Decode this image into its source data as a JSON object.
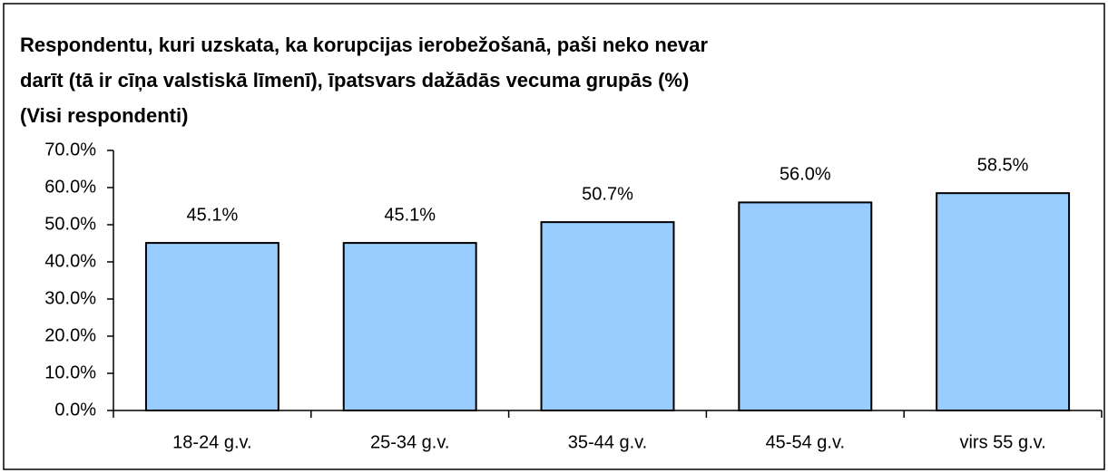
{
  "chart_data": {
    "type": "bar",
    "title": [
      "Respondentu, kuri uzskata, ka korupcijas ierobežošanā, paši neko nevar",
      "darīt (tā ir cīņa valstiskā līmenī), īpatsvars dažādās vecuma grupās (%)",
      "(Visi respondenti)"
    ],
    "categories": [
      "18-24 g.v.",
      "25-34 g.v.",
      "35-44 g.v.",
      "45-54 g.v.",
      "virs 55 g.v."
    ],
    "values": [
      45.1,
      45.1,
      50.7,
      56.0,
      58.5
    ],
    "value_labels": [
      "45.1%",
      "45.1%",
      "50.7%",
      "56.0%",
      "58.5%"
    ],
    "color": "#99ccff",
    "ylim": [
      0,
      70
    ],
    "yticks": [
      {
        "value": 0,
        "label": "0.0%"
      },
      {
        "value": 10,
        "label": "10.0%"
      },
      {
        "value": 20,
        "label": "20.0%"
      },
      {
        "value": 30,
        "label": "30.0%"
      },
      {
        "value": 40,
        "label": "40.0%"
      },
      {
        "value": 50,
        "label": "50.0%"
      },
      {
        "value": 60,
        "label": "60.0%"
      },
      {
        "value": 70,
        "label": "70.0%"
      }
    ]
  }
}
